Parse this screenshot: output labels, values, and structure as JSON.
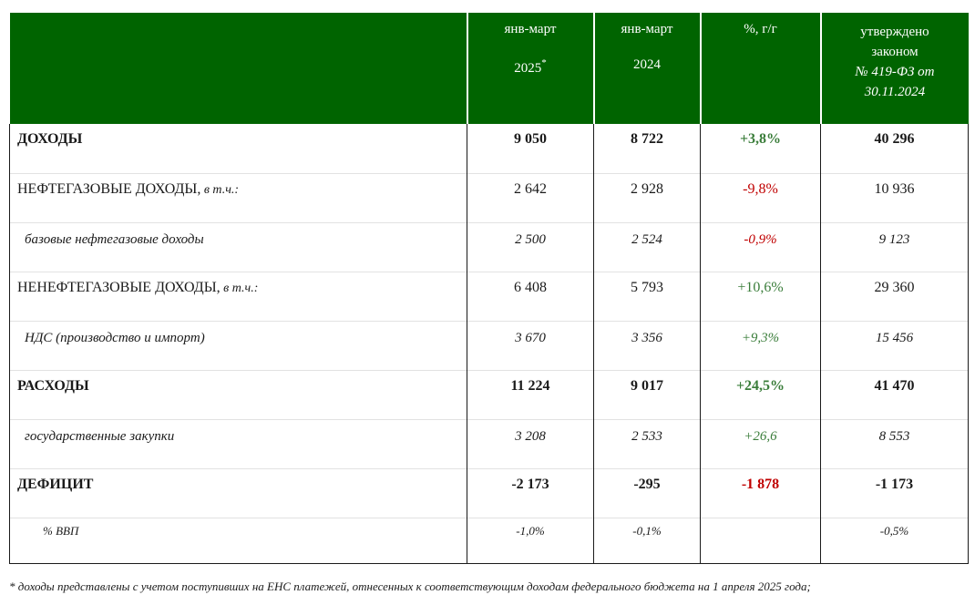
{
  "header": {
    "col1_line1": "янв-март",
    "col1_line2": "2025",
    "col1_mark": "*",
    "col2_line1": "янв-март",
    "col2_line2": "2024",
    "col3": "%, г/г",
    "col4_line1": "утверждено",
    "col4_line2": "законом",
    "col4_line3": "№ 419-ФЗ от",
    "col4_line4": "30.11.2024"
  },
  "rows": [
    {
      "label": "ДОХОДЫ",
      "suffix": "",
      "v2025": "9 050",
      "v2024": "8 722",
      "pct": "+3,8%",
      "law": "40 296"
    },
    {
      "label": "НЕФТЕГАЗОВЫЕ ДОХОДЫ,",
      "suffix": " в т.ч.:",
      "v2025": "2 642",
      "v2024": "2 928",
      "pct": "-9,8%",
      "law": "10 936"
    },
    {
      "label": "базовые нефтегазовые доходы",
      "suffix": "",
      "v2025": "2 500",
      "v2024": "2 524",
      "pct": "-0,9%",
      "law": "9 123"
    },
    {
      "label": "НЕНЕФТЕГАЗОВЫЕ ДОХОДЫ,",
      "suffix": " в т.ч.:",
      "v2025": "6 408",
      "v2024": "5 793",
      "pct": "+10,6%",
      "law": "29 360"
    },
    {
      "label": "НДС (производство и импорт)",
      "suffix": "",
      "v2025": "3 670",
      "v2024": "3 356",
      "pct": "+9,3%",
      "law": "15 456"
    },
    {
      "label": "РАСХОДЫ",
      "suffix": "",
      "v2025": "11 224",
      "v2024": "9 017",
      "pct": "+24,5%",
      "law": "41 470"
    },
    {
      "label": "государственные закупки",
      "suffix": "",
      "v2025": "3 208",
      "v2024": "2 533",
      "pct": "+26,6",
      "law": "8 553"
    },
    {
      "label": "ДЕФИЦИТ",
      "suffix": "",
      "v2025": "-2 173",
      "v2024": "-295",
      "pct": "-1 878",
      "law": "-1 173"
    },
    {
      "label": "% ВВП",
      "suffix": "",
      "v2025": "-1,0%",
      "v2024": "-0,1%",
      "pct": "",
      "law": "-0,5%"
    }
  ],
  "colors": {
    "header_bg": "#006400",
    "positive": "#3a7d3a",
    "negative": "#c00000"
  },
  "footnote": "* доходы представлены с учетом поступивших на ЕНС платежей, отнесенных к соответствующим доходам федерального бюджета на 1 апреля 2025 года;"
}
